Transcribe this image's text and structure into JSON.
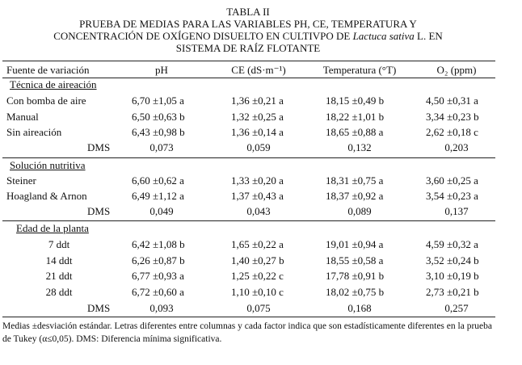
{
  "title": {
    "line1": "TABLA II",
    "line2": "PRUEBA DE MEDIAS PARA LAS VARIABLES PH, CE, TEMPERATURA Y",
    "line3_prefix": "CONCENTRACIÓN DE OXÍGENO DISUELTO EN CULTIVPO DE ",
    "line3_italic": "Lactuca sativa",
    "line3_suffix": " L. EN",
    "line4": "SISTEMA DE RAÍZ FLOTANTE"
  },
  "table": {
    "header": [
      "Fuente de variación",
      "pH",
      "CE (dS·m⁻¹)",
      "Temperatura (°T)",
      "O₂ (ppm)"
    ],
    "sections": [
      {
        "heading": "Técnica de aireación",
        "rows": [
          [
            "Con bomba de aire",
            "6,70 ±1,05 a",
            "1,36 ±0,21 a",
            "18,15 ±0,49 b",
            "4,50 ±0,31 a"
          ],
          [
            "Manual",
            "6,50 ±0,63 b",
            "1,32 ±0,25 a",
            "18,22 ±1,01 b",
            "3,34 ±0,23 b"
          ],
          [
            "Sin aireación",
            "6,43 ±0,98 b",
            "1,36 ±0,14 a",
            "18,65 ±0,88 a",
            "2,62 ±0,18 c"
          ]
        ],
        "dms": [
          "DMS",
          "0,073",
          "0,059",
          "0,132",
          "0,203"
        ]
      },
      {
        "heading": "Solución nutritiva",
        "rows": [
          [
            "Steiner",
            "6,60 ±0,62 a",
            "1,33 ±0,20 a",
            "18,31 ±0,75 a",
            "3,60 ±0,25 a"
          ],
          [
            "Hoagland & Arnon",
            "6,49 ±1,12 a",
            "1,37 ±0,43 a",
            "18,37 ±0,92 a",
            "3,54 ±0,23 a"
          ]
        ],
        "dms": [
          "DMS",
          "0,049",
          "0,043",
          "0,089",
          "0,137"
        ]
      },
      {
        "heading": "Edad de la planta",
        "rows": [
          [
            "7 ddt",
            "6,42 ±1,08 b",
            "1,65 ±0,22 a",
            "19,01 ±0,94 a",
            "4,59 ±0,32 a"
          ],
          [
            "14 ddt",
            "6,26 ±0,87 b",
            "1,40 ±0,27 b",
            "18,55 ±0,58 a",
            "3,52 ±0,24 b"
          ],
          [
            "21 ddt",
            "6,77 ±0,93 a",
            "1,25 ±0,22 c",
            "17,78 ±0,91 b",
            "3,10 ±0,19 b"
          ],
          [
            "28 ddt",
            "6,72 ±0,60 a",
            "1,10 ±0,10 c",
            "18,02 ±0,75 b",
            "2,73 ±0,21 b"
          ]
        ],
        "dms": [
          "DMS",
          "0,093",
          "0,075",
          "0,168",
          "0,257"
        ]
      }
    ]
  },
  "footnote": "Medias ±desviación estándar. Letras diferentes entre columnas y cada factor indica que son estadísticamente diferentes en la prueba de Tukey (α≤0,05). DMS: Diferencia mínima significativa."
}
